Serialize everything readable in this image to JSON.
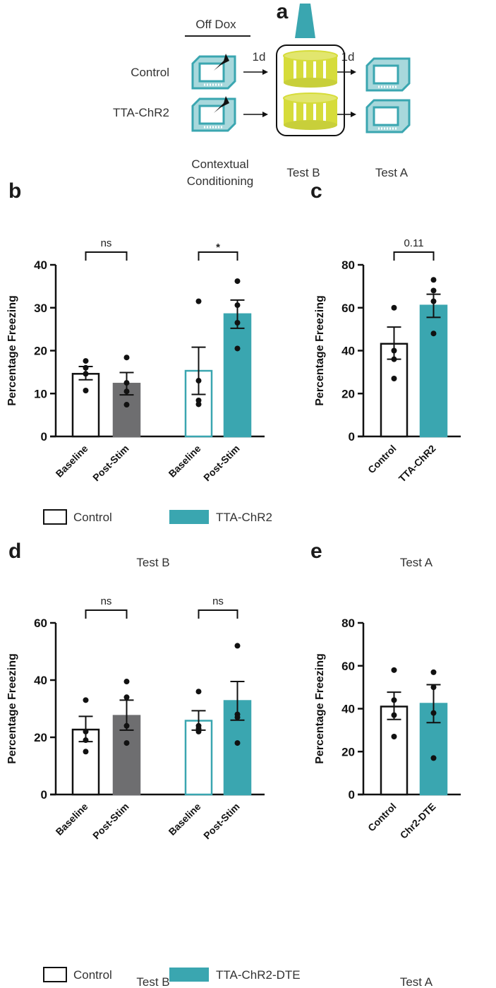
{
  "colors": {
    "teal": "#3aa6b0",
    "gray": "#6e6e70",
    "yellow": "#d6dc3a",
    "black": "#111111"
  },
  "panel_a": {
    "letter": "a",
    "off_dox": "Off Dox",
    "rows": [
      "Control",
      "TTA-ChR2"
    ],
    "delay_1": "1d",
    "delay_2": "1d",
    "stage_labels": [
      "Contextual",
      "Conditioning",
      "Test B",
      "Test A"
    ]
  },
  "chart_data": [
    {
      "id": "b",
      "letter": "b",
      "type": "bar",
      "title": "Test B",
      "ylabel": "Percentage Freezing",
      "ylim": [
        0,
        40
      ],
      "yticks": [
        0,
        10,
        20,
        30,
        40
      ],
      "categories": [
        "Baseline",
        "Post-Stim",
        "Baseline",
        "Post-Stim"
      ],
      "groups": [
        "Control",
        "Control",
        "TTA-ChR2",
        "TTA-ChR2"
      ],
      "values": [
        14.6,
        12.3,
        15.3,
        28.5
      ],
      "sem": [
        [
          13.2,
          16.3
        ],
        [
          9.7,
          14.9
        ],
        [
          9.8,
          20.8
        ],
        [
          25.2,
          31.8
        ]
      ],
      "points": [
        [
          17.6,
          16.0,
          14.6,
          10.7
        ],
        [
          18.4,
          12.5,
          10.5,
          7.4
        ],
        [
          31.5,
          13.0,
          8.4,
          7.5
        ],
        [
          36.2,
          30.6,
          26.5,
          20.5
        ]
      ],
      "significance": [
        {
          "pair": [
            0,
            1
          ],
          "label": "ns"
        },
        {
          "pair": [
            2,
            3
          ],
          "label": "*"
        }
      ],
      "legend": [
        "Control",
        "TTA-ChR2"
      ]
    },
    {
      "id": "c",
      "letter": "c",
      "type": "bar",
      "title": "Test A",
      "ylabel": "Percentage Freezing",
      "ylim": [
        0,
        80
      ],
      "yticks": [
        0,
        20,
        40,
        60,
        80
      ],
      "categories": [
        "Control",
        "TTA-ChR2"
      ],
      "groups": [
        "Control",
        "TTA-ChR2"
      ],
      "values": [
        43.2,
        61.0
      ],
      "sem": [
        [
          36.0,
          51.0
        ],
        [
          55.5,
          66.3
        ]
      ],
      "points": [
        [
          60.0,
          40.0,
          36.0,
          27.0
        ],
        [
          73.0,
          68.0,
          63.0,
          48.0
        ]
      ],
      "significance": [
        {
          "pair": [
            0,
            1
          ],
          "label": "0.11"
        }
      ]
    },
    {
      "id": "d",
      "letter": "d",
      "type": "bar",
      "title": "Test B",
      "ylabel": "Percentage Freezing",
      "ylim": [
        0,
        60
      ],
      "yticks": [
        0,
        20,
        40,
        60
      ],
      "categories": [
        "Baseline",
        "Post-Stim",
        "Baseline",
        "Post-Stim"
      ],
      "groups": [
        "Control",
        "Control",
        "TTA-ChR2-DTE",
        "TTA-ChR2-DTE"
      ],
      "values": [
        22.7,
        27.5,
        25.8,
        32.7
      ],
      "sem": [
        [
          18.5,
          27.3
        ],
        [
          22.5,
          33.0
        ],
        [
          22.5,
          29.3
        ],
        [
          26.0,
          39.5
        ]
      ],
      "points": [
        [
          33.0,
          22.0,
          19.0,
          15.0
        ],
        [
          39.5,
          34.0,
          24.0,
          18.0
        ],
        [
          36.0,
          24.0,
          23.0,
          22.0
        ],
        [
          52.0,
          28.0,
          27.0,
          18.0
        ]
      ],
      "significance": [
        {
          "pair": [
            0,
            1
          ],
          "label": "ns"
        },
        {
          "pair": [
            2,
            3
          ],
          "label": "ns"
        }
      ],
      "legend": [
        "Control",
        "TTA-ChR2-DTE"
      ]
    },
    {
      "id": "e",
      "letter": "e",
      "type": "bar",
      "title": "Test A",
      "ylabel": "Percentage Freezing",
      "ylim": [
        0,
        80
      ],
      "yticks": [
        0,
        20,
        40,
        60,
        80
      ],
      "categories": [
        "Control",
        "Chr2-DTE"
      ],
      "groups": [
        "Control",
        "Chr2-DTE"
      ],
      "values": [
        41.0,
        42.3
      ],
      "sem": [
        [
          35.0,
          47.7
        ],
        [
          33.5,
          51.2
        ]
      ],
      "points": [
        [
          58.0,
          44.0,
          37.0,
          27.0
        ],
        [
          57.0,
          50.0,
          38.0,
          17.0
        ]
      ],
      "significance": []
    }
  ]
}
